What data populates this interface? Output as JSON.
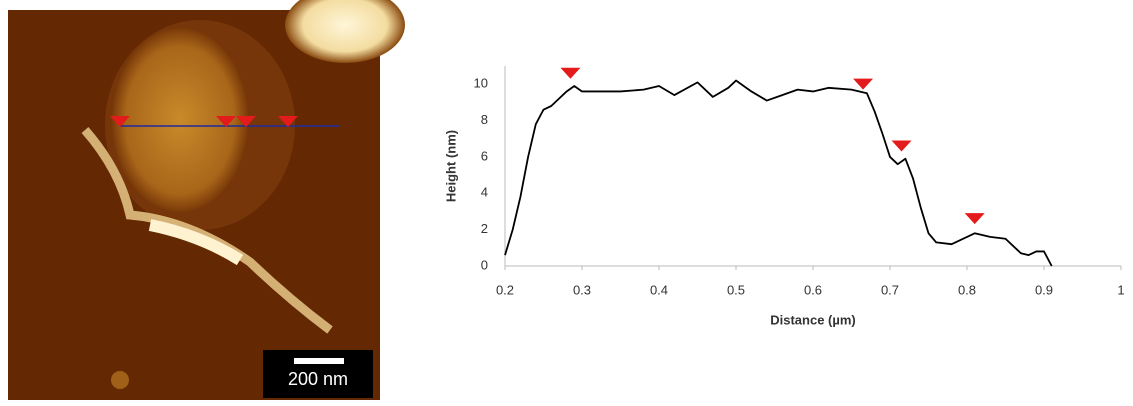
{
  "chart_data": {
    "type": "line",
    "x_label": "Distance (µm)",
    "y_label": "Height (nm)",
    "xlim": [
      0.2,
      1
    ],
    "xticks": [
      0.2,
      0.3,
      0.4,
      0.5,
      0.6,
      0.7,
      0.8,
      0.9,
      1
    ],
    "ylim": [
      0,
      11
    ],
    "yticks": [
      0,
      2,
      4,
      6,
      8,
      10
    ],
    "grid": false,
    "series": [
      {
        "color": "#000000",
        "x": [
          0.2,
          0.21,
          0.22,
          0.23,
          0.24,
          0.25,
          0.26,
          0.27,
          0.28,
          0.29,
          0.3,
          0.32,
          0.35,
          0.38,
          0.4,
          0.42,
          0.45,
          0.47,
          0.49,
          0.5,
          0.52,
          0.54,
          0.56,
          0.58,
          0.6,
          0.62,
          0.65,
          0.67,
          0.68,
          0.69,
          0.7,
          0.71,
          0.72,
          0.73,
          0.74,
          0.75,
          0.76,
          0.78,
          0.8,
          0.81,
          0.83,
          0.85,
          0.87,
          0.88,
          0.89,
          0.9,
          0.91
        ],
        "values": [
          0.6,
          2,
          3.8,
          6,
          7.8,
          8.6,
          8.8,
          9.2,
          9.6,
          9.9,
          9.6,
          9.6,
          9.6,
          9.7,
          9.9,
          9.4,
          10.1,
          9.3,
          9.8,
          10.2,
          9.6,
          9.1,
          9.4,
          9.7,
          9.6,
          9.8,
          9.7,
          9.5,
          8.5,
          7.3,
          6.0,
          5.6,
          5.9,
          4.8,
          3.2,
          1.8,
          1.3,
          1.2,
          1.6,
          1.8,
          1.6,
          1.5,
          0.7,
          0.6,
          0.8,
          0.8,
          0
        ]
      }
    ],
    "markers": {
      "color": "#e31b1b",
      "x": [
        0.285,
        0.665,
        0.715,
        0.81
      ],
      "values": [
        10.3,
        9.7,
        6.3,
        2.3
      ]
    }
  },
  "image": {
    "scale_bar": "200 nm"
  }
}
